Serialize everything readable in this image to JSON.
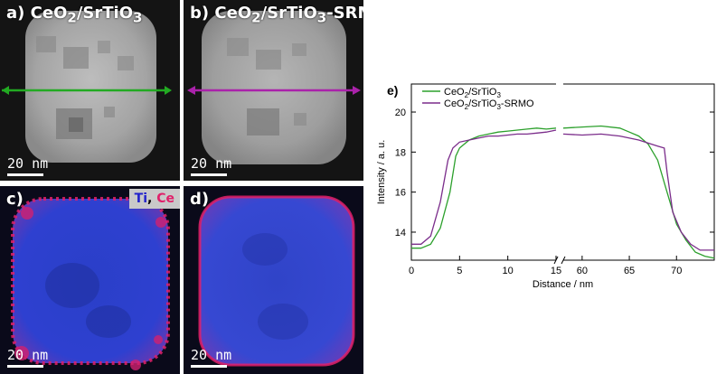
{
  "panels": {
    "a": {
      "label": "a)",
      "sample": "CeO",
      "sub": "2",
      "rest": "/SrTiO",
      "sub2": "3",
      "suffix": "",
      "scale": "20 nm",
      "line_color": "#22aa22"
    },
    "b": {
      "label": "b)",
      "sample": "CeO",
      "sub": "2",
      "rest": "/SrTiO",
      "sub2": "3",
      "suffix": "-SRMO",
      "scale": "20 nm",
      "line_color": "#aa22aa"
    },
    "c": {
      "label": "c)",
      "scale": "20 nm",
      "legend_ti": "Ti",
      "legend_sep": ",",
      "legend_ce": "Ce"
    },
    "d": {
      "label": "d)",
      "scale": "20 nm"
    }
  },
  "chart_label": "e)",
  "chart_data": {
    "type": "line",
    "title": "",
    "xlabel": "Distance / nm",
    "ylabel": "Intensity / a. u.",
    "x_segments": [
      [
        0,
        15
      ],
      [
        58,
        74
      ]
    ],
    "xticks_left": [
      0,
      5,
      10,
      15
    ],
    "xticks_right": [
      60,
      65,
      70
    ],
    "ylim": [
      12.6,
      21.4
    ],
    "yticks": [
      14,
      16,
      18,
      20
    ],
    "series": [
      {
        "name": "CeO2/SrTiO3",
        "legend_main": "CeO",
        "legend_sub": "2",
        "legend_rest": "/SrTiO",
        "legend_sub2": "3",
        "legend_suffix": "",
        "color": "#2ca02c",
        "points": [
          [
            0,
            13.2
          ],
          [
            1,
            13.2
          ],
          [
            2,
            13.4
          ],
          [
            3,
            14.2
          ],
          [
            4,
            16.0
          ],
          [
            4.6,
            17.8
          ],
          [
            5,
            18.2
          ],
          [
            6,
            18.6
          ],
          [
            7,
            18.8
          ],
          [
            8,
            18.9
          ],
          [
            9,
            19.0
          ],
          [
            10,
            19.05
          ],
          [
            11,
            19.1
          ],
          [
            12,
            19.15
          ],
          [
            13,
            19.2
          ],
          [
            14,
            19.15
          ],
          [
            15,
            19.2
          ],
          [
            58,
            19.2
          ],
          [
            60,
            19.25
          ],
          [
            62,
            19.3
          ],
          [
            64,
            19.2
          ],
          [
            65,
            19.0
          ],
          [
            66,
            18.8
          ],
          [
            67,
            18.4
          ],
          [
            68,
            17.6
          ],
          [
            69,
            16.0
          ],
          [
            70,
            14.4
          ],
          [
            71,
            13.6
          ],
          [
            72,
            13.0
          ],
          [
            73,
            12.8
          ],
          [
            74,
            12.7
          ]
        ]
      },
      {
        "name": "CeO2/SrTiO3-SRMO",
        "legend_main": "CeO",
        "legend_sub": "2",
        "legend_rest": "/SrTiO",
        "legend_sub2": "3",
        "legend_suffix": "-SRMO",
        "color": "#7b2d8b",
        "points": [
          [
            0,
            13.4
          ],
          [
            1,
            13.4
          ],
          [
            2,
            13.8
          ],
          [
            3,
            15.5
          ],
          [
            3.8,
            17.6
          ],
          [
            4.3,
            18.2
          ],
          [
            5,
            18.5
          ],
          [
            6,
            18.6
          ],
          [
            7,
            18.7
          ],
          [
            8,
            18.8
          ],
          [
            9,
            18.8
          ],
          [
            10,
            18.85
          ],
          [
            11,
            18.9
          ],
          [
            12,
            18.9
          ],
          [
            13,
            18.95
          ],
          [
            14,
            19.0
          ],
          [
            15,
            19.1
          ],
          [
            58,
            18.9
          ],
          [
            60,
            18.85
          ],
          [
            62,
            18.9
          ],
          [
            64,
            18.8
          ],
          [
            66,
            18.6
          ],
          [
            67,
            18.45
          ],
          [
            68,
            18.3
          ],
          [
            68.7,
            18.2
          ],
          [
            69,
            17.0
          ],
          [
            69.6,
            15.0
          ],
          [
            70.5,
            14.0
          ],
          [
            71.5,
            13.4
          ],
          [
            72.5,
            13.1
          ],
          [
            74,
            13.1
          ]
        ]
      }
    ]
  }
}
